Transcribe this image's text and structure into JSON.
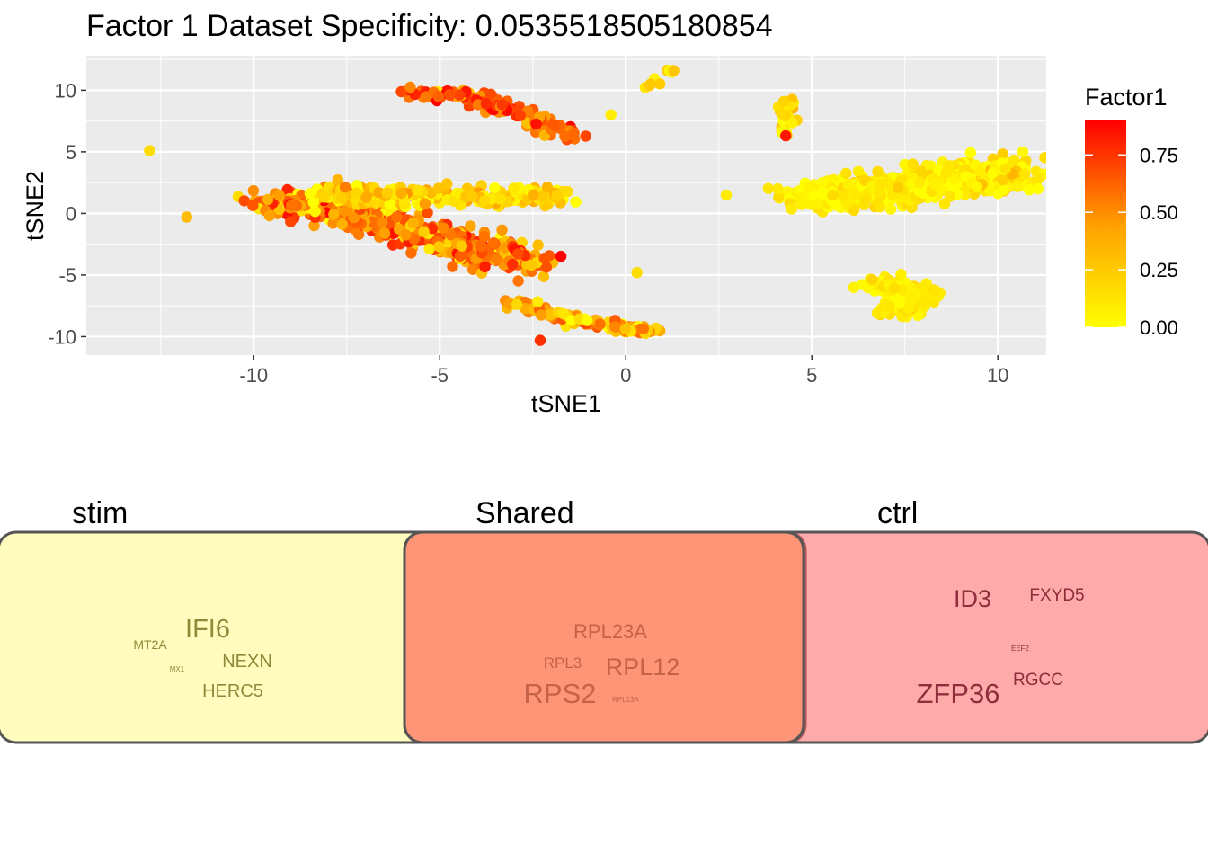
{
  "title": "Factor 1 Dataset Specificity: 0.0535518505180854",
  "chart_data": [
    {
      "type": "scatter",
      "xlabel": "tSNE1",
      "ylabel": "tSNE2",
      "xlim": [
        -14.5,
        11.3
      ],
      "ylim": [
        -11.5,
        12.8
      ],
      "xticks": [
        -10,
        -5,
        0,
        5,
        10
      ],
      "yticks": [
        10,
        5,
        0,
        -5,
        -10
      ],
      "xtick_labels": [
        "-10",
        "-5",
        "0",
        "5",
        "10"
      ],
      "ytick_labels": [
        "10",
        "5",
        "0",
        "-5",
        "-10"
      ],
      "grid": true,
      "legend": {
        "title": "Factor1",
        "placement": "right",
        "range": [
          0,
          0.9
        ],
        "ticks": [
          0.75,
          0.5,
          0.25,
          0.0
        ],
        "tick_labels": [
          "0.75",
          "0.50",
          "0.25",
          "0.00"
        ],
        "low_color": "#FFFF00",
        "high_color": "#FF0000"
      },
      "clusters": [
        {
          "path": [
            [
              -6,
              9.8
            ],
            [
              -4.5,
              9.6
            ],
            [
              -3,
              8.5
            ],
            [
              -1.4,
              6.2
            ]
          ],
          "spread": 0.45,
          "n": 150,
          "f_mean": 0.55,
          "f_sd": 0.2
        },
        {
          "path": [
            [
              -9.3,
              1.2
            ],
            [
              -6.5,
              -0.5
            ],
            [
              -4,
              -3
            ],
            [
              -2.6,
              -4
            ]
          ],
          "spread": 1.0,
          "n": 520,
          "f_mean": 0.42,
          "f_sd": 0.2
        },
        {
          "path": [
            [
              -8,
              1.5
            ],
            [
              -5,
              1.5
            ],
            [
              -1.6,
              1.4
            ]
          ],
          "spread": 0.7,
          "n": 220,
          "f_mean": 0.12,
          "f_sd": 0.1
        },
        {
          "path": [
            [
              -3,
              -7.2
            ],
            [
              -1,
              -8.8
            ],
            [
              0.7,
              -9.6
            ]
          ],
          "spread": 0.35,
          "n": 110,
          "f_mean": 0.28,
          "f_sd": 0.15
        },
        {
          "path": [
            [
              6.6,
              -5.5
            ],
            [
              7.9,
              -6.4
            ],
            [
              7.2,
              -8.2
            ]
          ],
          "spread": 0.55,
          "n": 150,
          "f_mean": 0.05,
          "f_sd": 0.04
        },
        {
          "path": [
            [
              4.8,
              1.5
            ],
            [
              6.8,
              1.8
            ],
            [
              9,
              2.8
            ],
            [
              10.5,
              3.3
            ]
          ],
          "spread": 1.15,
          "n": 700,
          "f_mean": 0.05,
          "f_sd": 0.05
        },
        {
          "path": [
            [
              4.3,
              9.3
            ],
            [
              4.2,
              6.4
            ]
          ],
          "spread": 0.25,
          "n": 28,
          "f_mean": 0.08,
          "f_sd": 0.08
        },
        {
          "path": [
            [
              0.5,
              10.1
            ],
            [
              1.3,
              11.7
            ]
          ],
          "spread": 0.15,
          "n": 10,
          "f_mean": 0.12,
          "f_sd": 0.05
        }
      ],
      "points": [
        {
          "x": -12.8,
          "y": 5.1,
          "f": 0.1
        },
        {
          "x": -11.8,
          "y": -0.3,
          "f": 0.2
        },
        {
          "x": -2.3,
          "y": -10.3,
          "f": 0.7
        },
        {
          "x": 0.3,
          "y": -4.8,
          "f": 0.1
        },
        {
          "x": -0.4,
          "y": 8.0,
          "f": 0.05
        },
        {
          "x": 2.7,
          "y": 1.5,
          "f": 0.05
        },
        {
          "x": 4.3,
          "y": 6.3,
          "f": 0.8
        }
      ]
    },
    {
      "type": "word-venn",
      "panels": [
        {
          "label": "stim",
          "color": "#FFFA99"
        },
        {
          "label": "Shared",
          "color": "#FF7D5F"
        },
        {
          "label": "ctrl",
          "color": "#FF8585"
        }
      ],
      "words": [
        {
          "text": "IFI6",
          "size": 29,
          "color": "#8F8838"
        },
        {
          "text": "MT2A",
          "size": 14,
          "color": "#8F8838"
        },
        {
          "text": "NEXN",
          "size": 20,
          "color": "#8F8838"
        },
        {
          "text": "MX1",
          "size": 8,
          "color": "#8F8838"
        },
        {
          "text": "HERC5",
          "size": 20,
          "color": "#8F8838"
        },
        {
          "text": "RPL23A",
          "size": 22,
          "color": "#C56349"
        },
        {
          "text": "RPL3",
          "size": 17,
          "color": "#C56349"
        },
        {
          "text": "RPL12",
          "size": 27,
          "color": "#C56349"
        },
        {
          "text": "RPS2",
          "size": 31,
          "color": "#C56349"
        },
        {
          "text": "RPL13A",
          "size": 8,
          "color": "#C56349"
        },
        {
          "text": "ID3",
          "size": 27,
          "color": "#8E2D3B"
        },
        {
          "text": "FXYD5",
          "size": 19,
          "color": "#8E2D3B"
        },
        {
          "text": "EEF2",
          "size": 8,
          "color": "#8E2D3B"
        },
        {
          "text": "RGCC",
          "size": 19,
          "color": "#8E2D3B"
        },
        {
          "text": "ZFP36",
          "size": 31,
          "color": "#8E2D3B"
        }
      ]
    }
  ]
}
